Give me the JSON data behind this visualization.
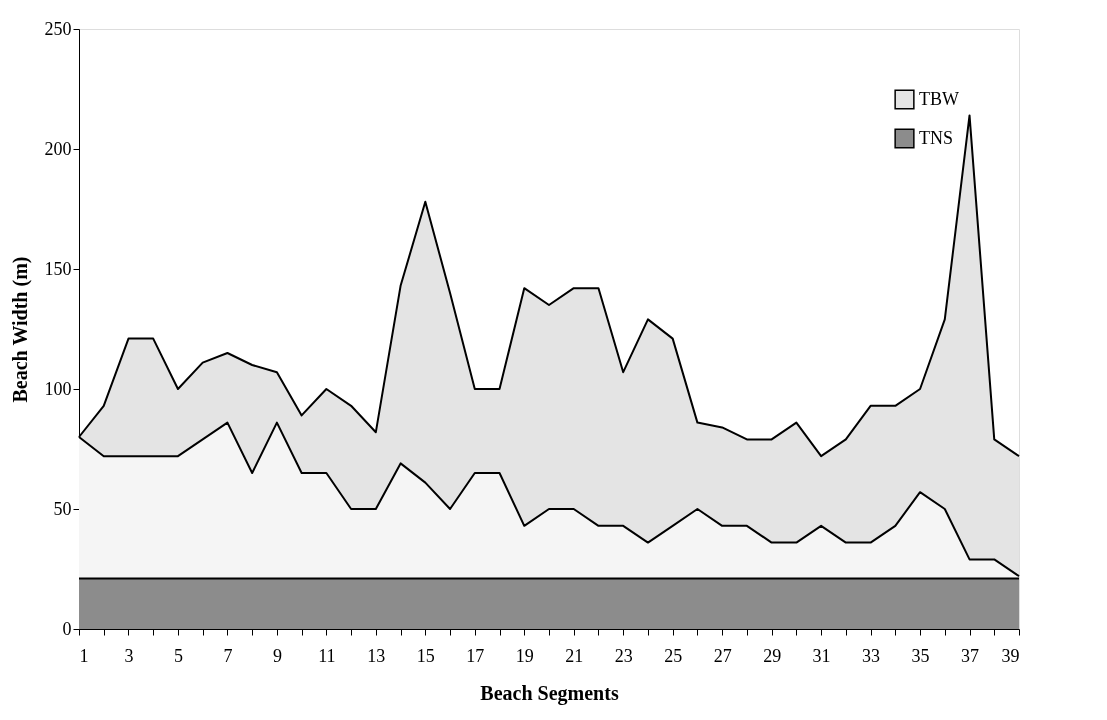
{
  "chart_data": {
    "type": "area",
    "xlabel": "Beach Segments",
    "ylabel": "Beach Width (m)",
    "x": [
      1,
      2,
      3,
      4,
      5,
      6,
      7,
      8,
      9,
      10,
      11,
      12,
      13,
      14,
      15,
      16,
      17,
      18,
      19,
      20,
      21,
      22,
      23,
      24,
      25,
      26,
      27,
      28,
      29,
      30,
      31,
      32,
      33,
      34,
      35,
      36,
      37,
      38,
      39
    ],
    "series": [
      {
        "name": "TBW",
        "color": "#e4e4e4",
        "values": [
          80,
          93,
          121,
          121,
          100,
          111,
          115,
          110,
          107,
          89,
          100,
          93,
          82,
          143,
          178,
          140,
          100,
          100,
          142,
          135,
          142,
          142,
          107,
          129,
          121,
          86,
          84,
          79,
          79,
          86,
          72,
          79,
          93,
          93,
          100,
          129,
          214,
          79,
          72
        ]
      },
      {
        "color": "#f5f5f5",
        "values": [
          80,
          72,
          72,
          72,
          72,
          79,
          86,
          65,
          86,
          65,
          65,
          50,
          50,
          69,
          61,
          50,
          65,
          65,
          43,
          50,
          50,
          43,
          43,
          36,
          43,
          50,
          43,
          43,
          36,
          36,
          43,
          36,
          36,
          43,
          57,
          50,
          29,
          29,
          22
        ]
      },
      {
        "name": "TNS",
        "color": "#8c8c8c",
        "values": [
          21,
          21,
          21,
          21,
          21,
          21,
          21,
          21,
          21,
          21,
          21,
          21,
          21,
          21,
          21,
          21,
          21,
          21,
          21,
          21,
          21,
          21,
          21,
          21,
          21,
          21,
          21,
          21,
          21,
          21,
          21,
          21,
          21,
          21,
          21,
          21,
          21,
          21,
          21
        ]
      }
    ],
    "xlim": [
      1,
      39
    ],
    "xticks": [
      1,
      {
        "value": 2,
        "label": null
      },
      3,
      {
        "value": 4,
        "label": null
      },
      5,
      {
        "value": 6,
        "label": null
      },
      7,
      {
        "value": 8,
        "label": null
      },
      9,
      {
        "value": 10,
        "label": null
      },
      11,
      {
        "value": 12,
        "label": null
      },
      13,
      {
        "value": 14,
        "label": null
      },
      15,
      {
        "value": 16,
        "label": null
      },
      17,
      {
        "value": 18,
        "label": null
      },
      19,
      {
        "value": 20,
        "label": null
      },
      21,
      {
        "value": 22,
        "label": null
      },
      23,
      {
        "value": 24,
        "label": null
      },
      25,
      {
        "value": 26,
        "label": null
      },
      27,
      {
        "value": 28,
        "label": null
      },
      29,
      {
        "value": 30,
        "label": null
      },
      31,
      {
        "value": 32,
        "label": null
      },
      33,
      {
        "value": 34,
        "label": null
      },
      35,
      {
        "value": 36,
        "label": null
      },
      37,
      {
        "value": 38,
        "label": null
      },
      39
    ],
    "ylim": [
      0,
      250
    ],
    "yticks": [
      0,
      50,
      100,
      150,
      200,
      250
    ],
    "grid": false,
    "legend": "top right",
    "line_style": "solid"
  }
}
